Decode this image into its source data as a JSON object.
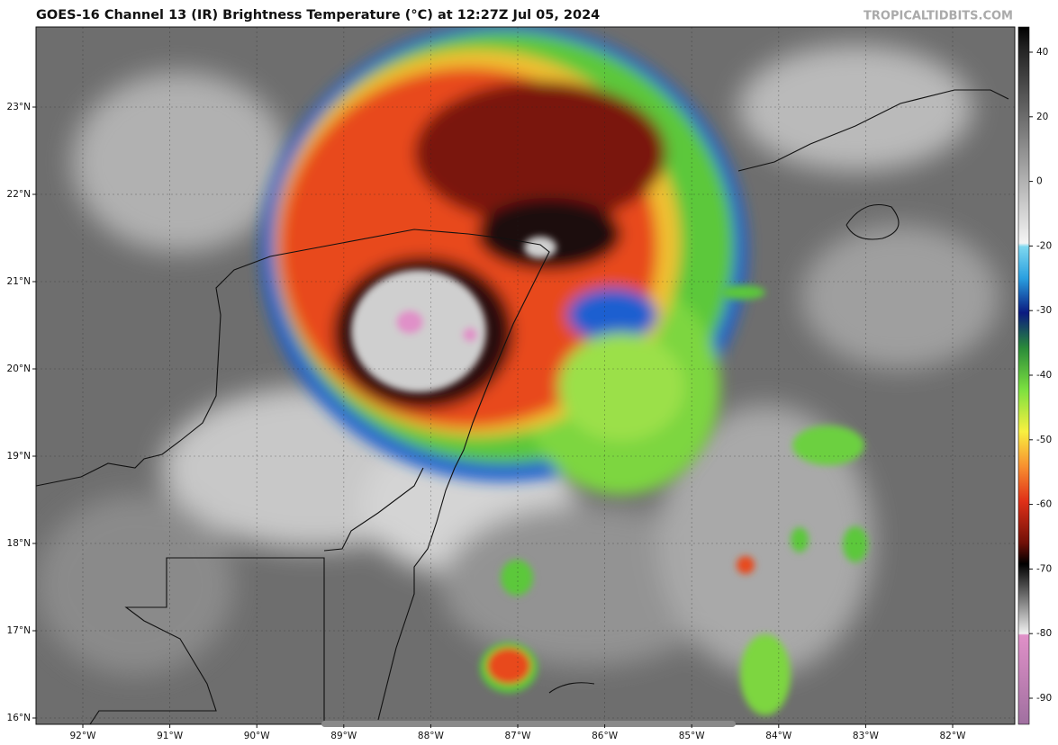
{
  "header": {
    "title": "GOES-16 Channel 13 (IR) Brightness Temperature (°C) at 12:27Z Jul 05, 2024",
    "source": "TROPICALTIDBITS.COM"
  },
  "map": {
    "lon_labels": [
      "92°W",
      "91°W",
      "90°W",
      "89°W",
      "88°W",
      "87°W",
      "86°W",
      "85°W",
      "84°W",
      "83°W",
      "82°W"
    ],
    "lat_labels": [
      "23°N",
      "22°N",
      "21°N",
      "20°N",
      "19°N",
      "18°N",
      "17°N",
      "16°N"
    ]
  },
  "colorbar": {
    "ticks": [
      40,
      20,
      0,
      -20,
      -30,
      -40,
      -50,
      -60,
      -70,
      -80,
      -90
    ]
  }
}
